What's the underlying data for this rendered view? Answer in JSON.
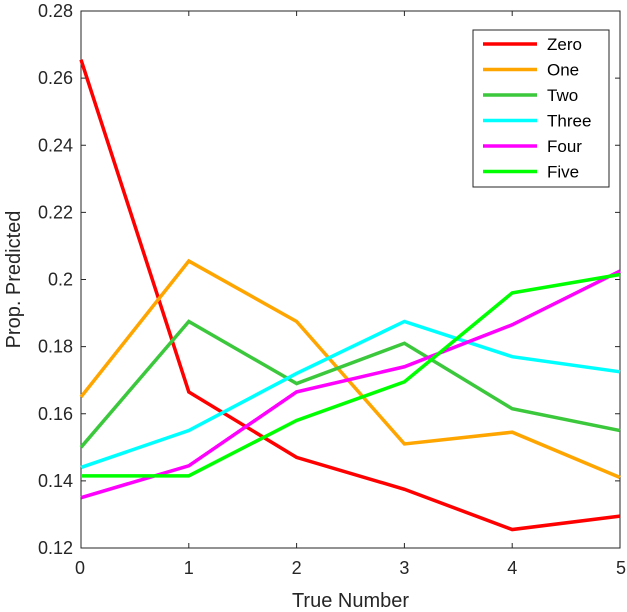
{
  "chart_data": {
    "type": "line",
    "title": "",
    "xlabel": "True Number",
    "ylabel": "Prop. Predicted",
    "x": [
      0,
      1,
      2,
      3,
      4,
      5
    ],
    "xlim": [
      0,
      5
    ],
    "ylim": [
      0.12,
      0.28
    ],
    "xticks": [
      0,
      1,
      2,
      3,
      4,
      5
    ],
    "yticks": [
      0.12,
      0.14,
      0.16,
      0.18,
      0.2,
      0.22,
      0.24,
      0.26,
      0.28
    ],
    "xtick_labels": [
      "0",
      "1",
      "2",
      "3",
      "4",
      "5"
    ],
    "ytick_labels": [
      "0.12",
      "0.14",
      "0.16",
      "0.18",
      "0.2",
      "0.22",
      "0.24",
      "0.26",
      "0.28"
    ],
    "grid": false,
    "legend_position": "top-right",
    "series": [
      {
        "name": "Zero",
        "color": "#ff0000",
        "values": [
          0.2655,
          0.1665,
          0.147,
          0.1375,
          0.1255,
          0.1295
        ]
      },
      {
        "name": "One",
        "color": "#ffa500",
        "values": [
          0.165,
          0.2055,
          0.1875,
          0.151,
          0.1545,
          0.141
        ]
      },
      {
        "name": "Two",
        "color": "#3cc83c",
        "values": [
          0.15,
          0.1875,
          0.169,
          0.181,
          0.1615,
          0.155
        ]
      },
      {
        "name": "Three",
        "color": "#00ffff",
        "values": [
          0.144,
          0.155,
          0.172,
          0.1875,
          0.177,
          0.1725
        ]
      },
      {
        "name": "Four",
        "color": "#ff00ff",
        "values": [
          0.135,
          0.1445,
          0.1665,
          0.174,
          0.1865,
          0.2025
        ]
      },
      {
        "name": "Five",
        "color": "#00ff00",
        "values": [
          0.1415,
          0.1415,
          0.158,
          0.1695,
          0.196,
          0.2015
        ]
      }
    ]
  }
}
